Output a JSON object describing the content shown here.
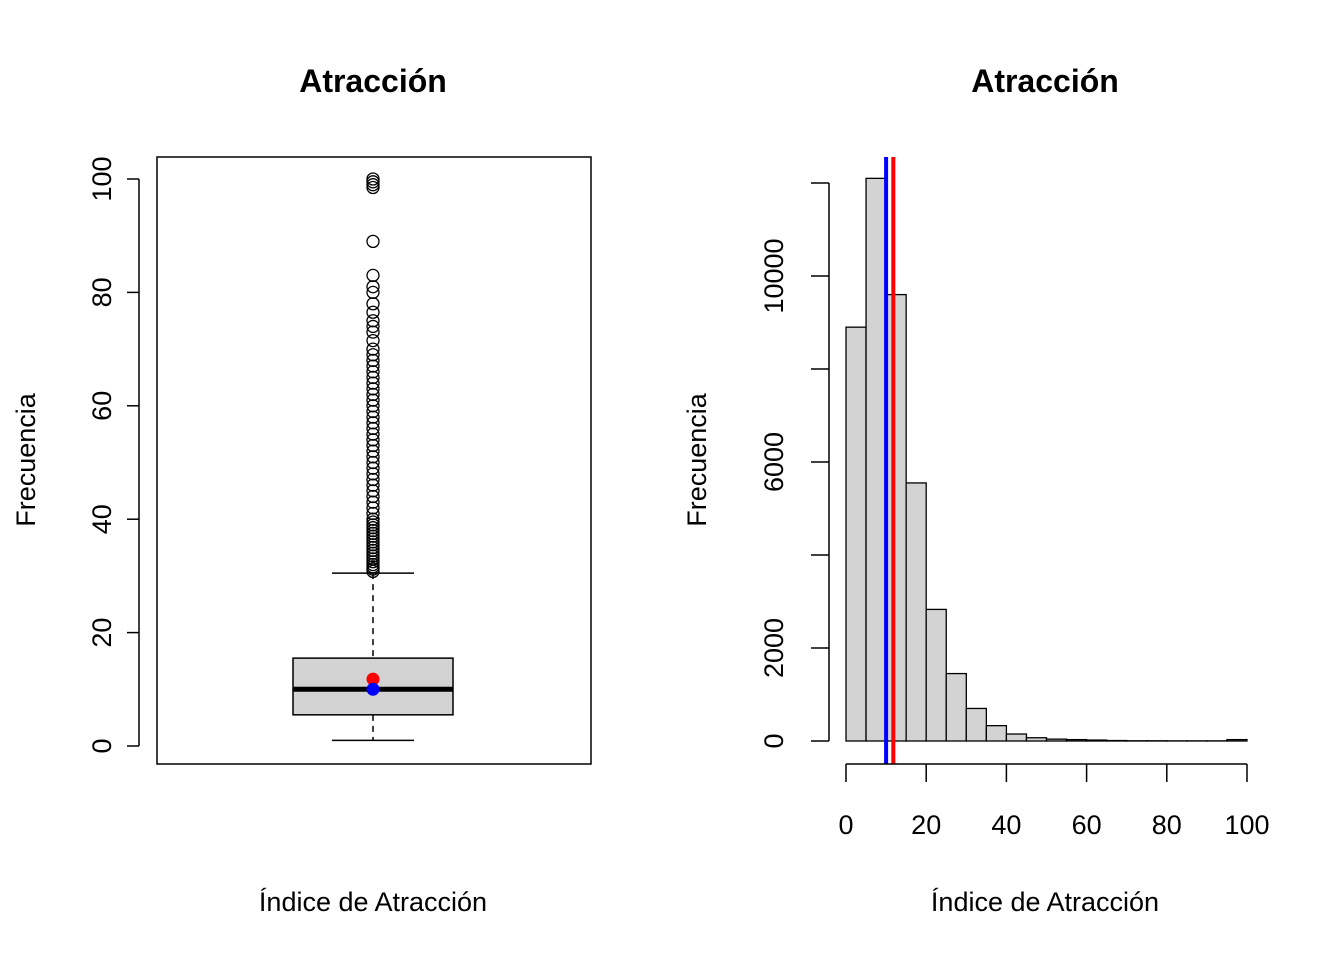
{
  "colors": {
    "fill": "#d3d3d3",
    "stroke": "#000000",
    "mean": "#ff0000",
    "median": "#0000ff"
  },
  "chart_data": [
    {
      "type": "boxplot",
      "title": "Atracción",
      "xlabel": "Índice de Atracción",
      "ylabel": "Frecuencia",
      "ylim": [
        0,
        100
      ],
      "yticks": [
        0,
        20,
        40,
        60,
        80,
        100
      ],
      "stats": {
        "whisker_low": 1,
        "q1": 5.5,
        "median": 10,
        "q3": 15.5,
        "whisker_high": 30.5
      },
      "mean_point": 11.8,
      "median_point": 10,
      "outliers": [
        30.8,
        31.2,
        31.6,
        32,
        32.5,
        33,
        33.5,
        34,
        34.5,
        35,
        35.5,
        36,
        36.5,
        37,
        37.5,
        38,
        38.5,
        39,
        39.5,
        40,
        41,
        42,
        43,
        44,
        45,
        46,
        47,
        48,
        49,
        50,
        51,
        52,
        53,
        54,
        55,
        56,
        57,
        58,
        59,
        60,
        61,
        62,
        63,
        64,
        65,
        66,
        67,
        68,
        69,
        70,
        71.5,
        73,
        74,
        75,
        76.5,
        78,
        80,
        81,
        83,
        89,
        98.5,
        99,
        99.5,
        100
      ]
    },
    {
      "type": "bar",
      "subtype": "histogram",
      "title": "Atracción",
      "xlabel": "Índice de Atracción",
      "ylabel": "Frecuencia",
      "xlim": [
        0,
        100
      ],
      "xticks": [
        0,
        20,
        40,
        60,
        80,
        100
      ],
      "ylim": [
        0,
        12000
      ],
      "yticks": [
        0,
        2000,
        4000,
        6000,
        8000,
        10000,
        12000
      ],
      "ytick_labels": [
        "0",
        "2000",
        "",
        "6000",
        "",
        "10000",
        ""
      ],
      "bins": [
        {
          "x0": 0,
          "x1": 5,
          "count": 8900
        },
        {
          "x0": 5,
          "x1": 10,
          "count": 12100
        },
        {
          "x0": 10,
          "x1": 15,
          "count": 9600
        },
        {
          "x0": 15,
          "x1": 20,
          "count": 5550
        },
        {
          "x0": 20,
          "x1": 25,
          "count": 2830
        },
        {
          "x0": 25,
          "x1": 30,
          "count": 1450
        },
        {
          "x0": 30,
          "x1": 35,
          "count": 700
        },
        {
          "x0": 35,
          "x1": 40,
          "count": 330
        },
        {
          "x0": 40,
          "x1": 45,
          "count": 150
        },
        {
          "x0": 45,
          "x1": 50,
          "count": 70
        },
        {
          "x0": 50,
          "x1": 55,
          "count": 40
        },
        {
          "x0": 55,
          "x1": 60,
          "count": 30
        },
        {
          "x0": 60,
          "x1": 65,
          "count": 20
        },
        {
          "x0": 65,
          "x1": 70,
          "count": 10
        },
        {
          "x0": 70,
          "x1": 75,
          "count": 5
        },
        {
          "x0": 75,
          "x1": 80,
          "count": 5
        },
        {
          "x0": 80,
          "x1": 85,
          "count": 3
        },
        {
          "x0": 85,
          "x1": 90,
          "count": 3
        },
        {
          "x0": 90,
          "x1": 95,
          "count": 3
        },
        {
          "x0": 95,
          "x1": 100,
          "count": 30
        }
      ],
      "vlines": [
        {
          "x": 10,
          "color": "#0000ff"
        },
        {
          "x": 11.8,
          "color": "#ff0000"
        }
      ]
    }
  ]
}
